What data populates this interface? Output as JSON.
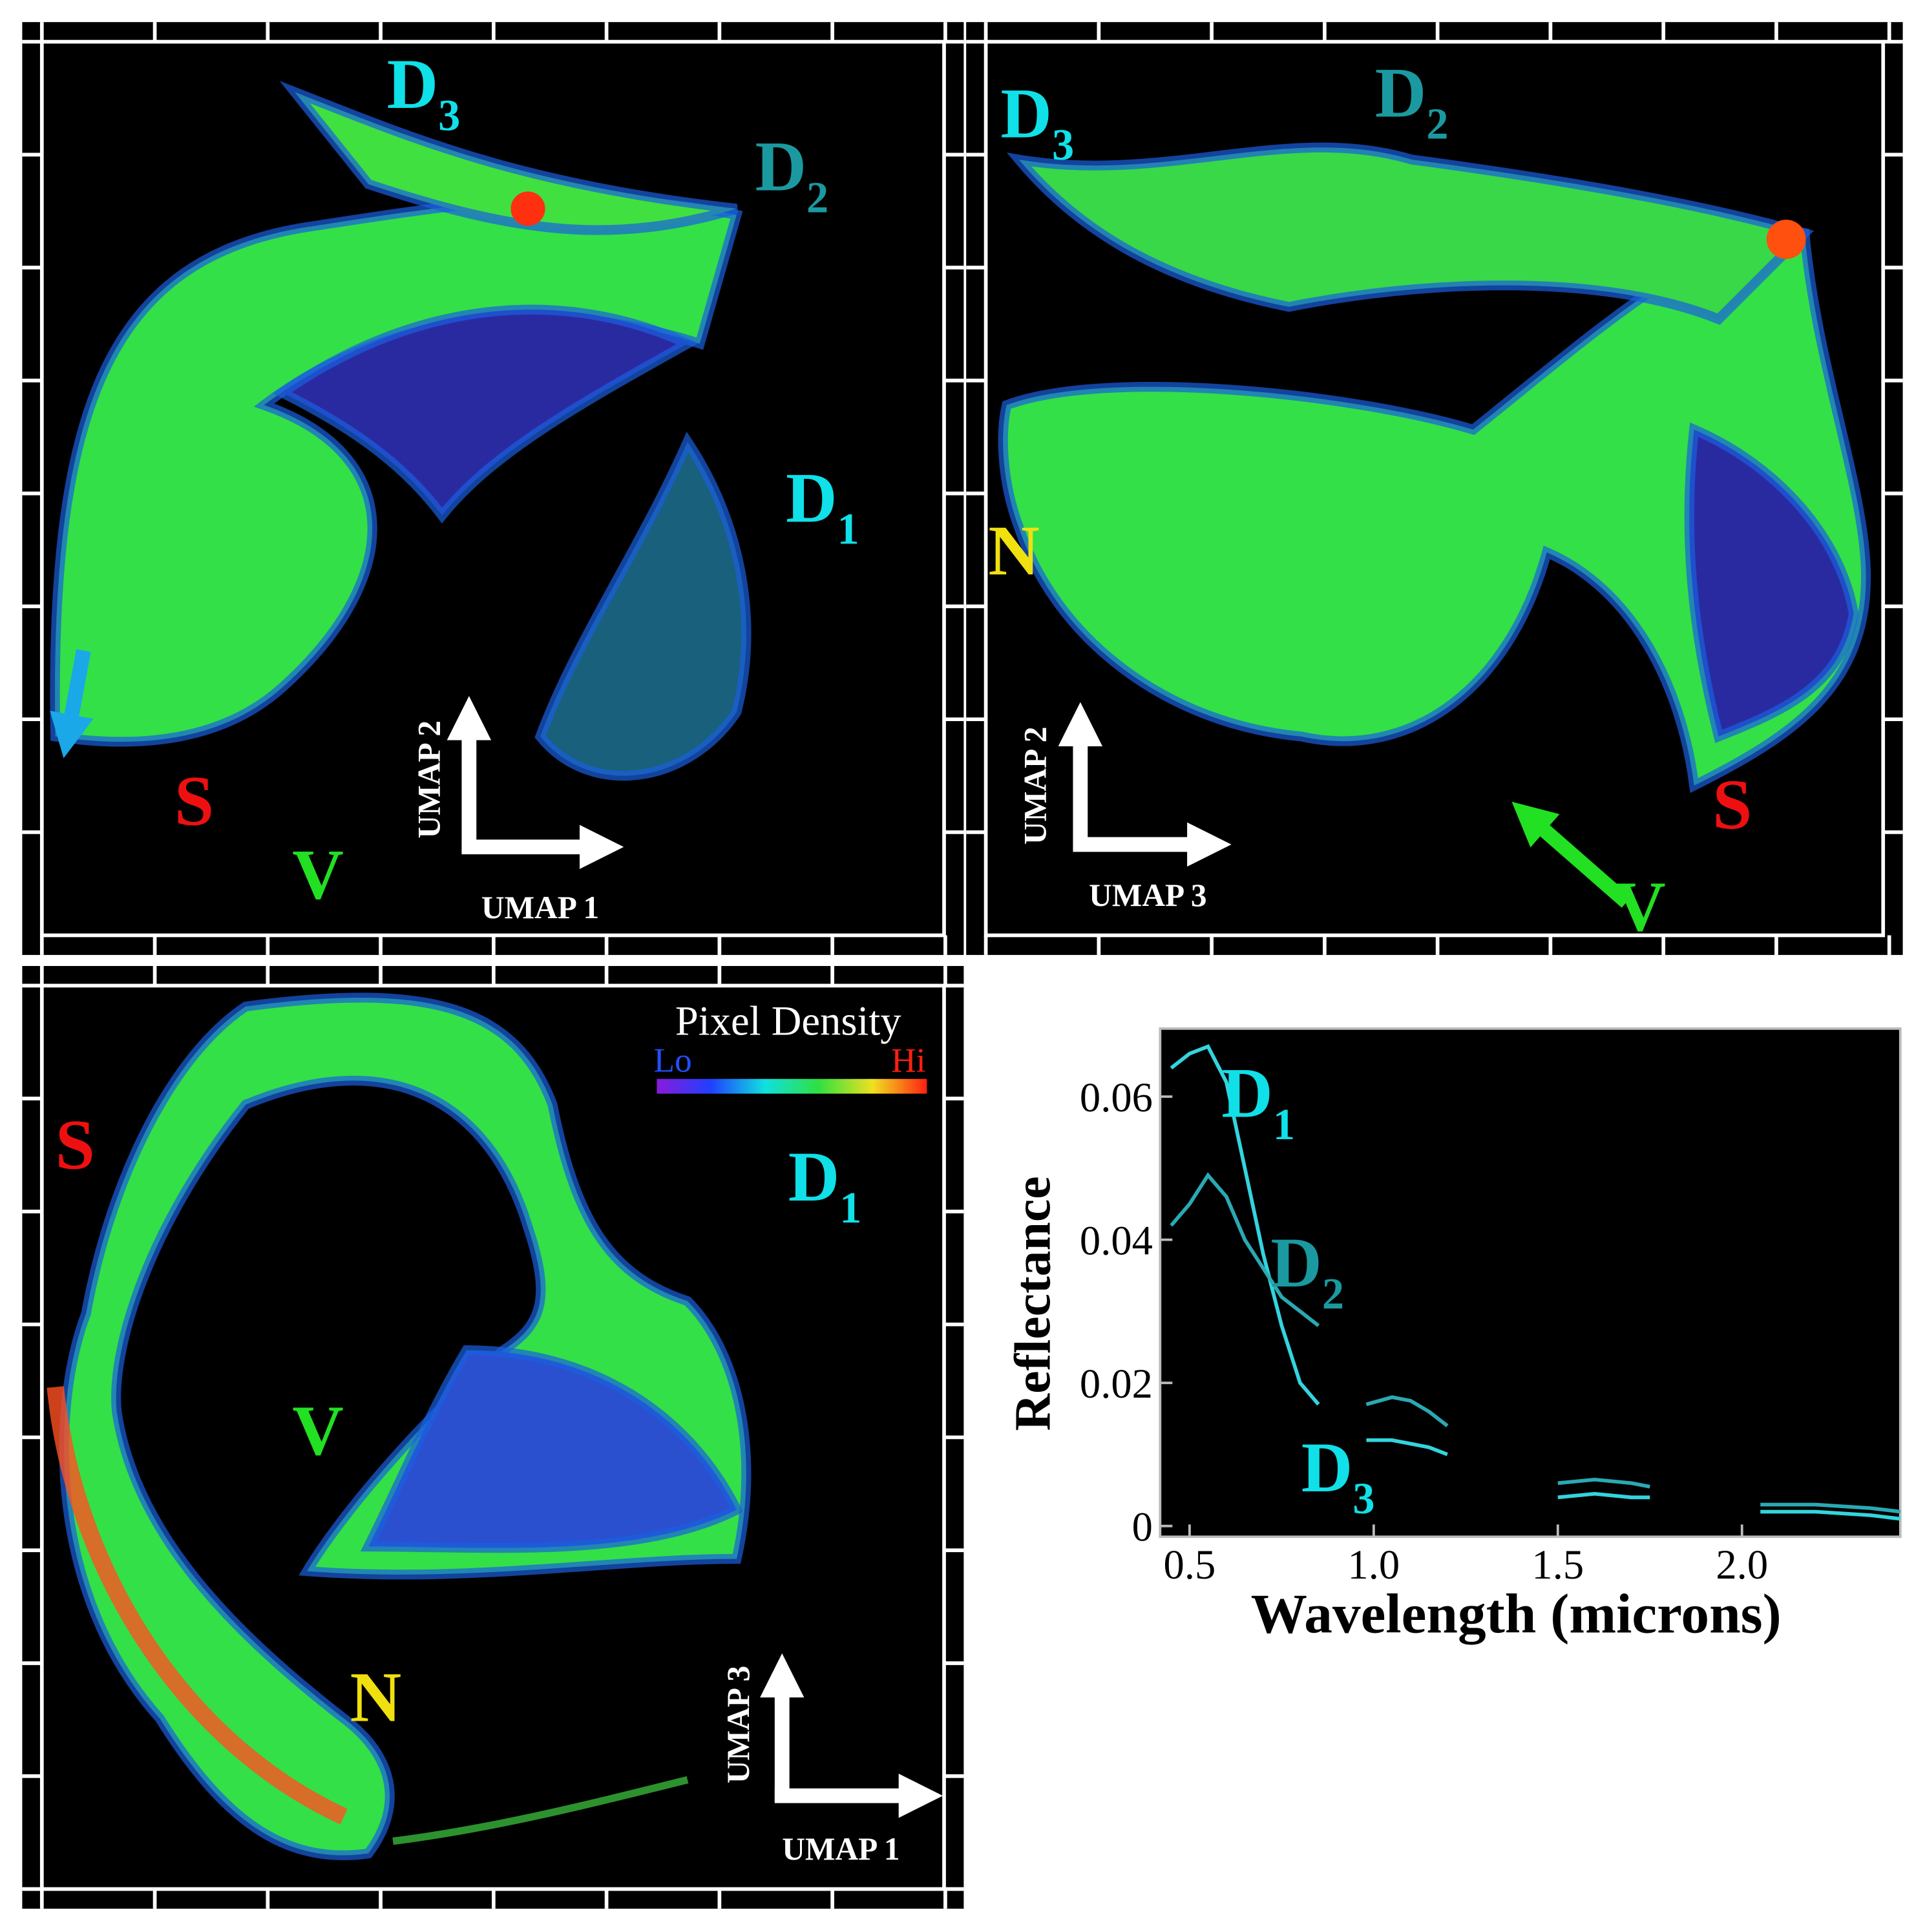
{
  "panels": [
    {
      "labels": [
        {
          "text": "D",
          "sub": "3"
        },
        {
          "text": "D",
          "sub": "2"
        },
        {
          "text": "D",
          "sub": "1"
        },
        {
          "text": "S"
        },
        {
          "text": "V"
        }
      ],
      "axis_y": "UMAP 2",
      "axis_x": "UMAP 1"
    },
    {
      "labels": [
        {
          "text": "D",
          "sub": "3"
        },
        {
          "text": "D",
          "sub": "2"
        },
        {
          "text": "N"
        },
        {
          "text": "S"
        },
        {
          "text": "V"
        }
      ],
      "axis_y": "UMAP 2",
      "axis_x": "UMAP 3"
    },
    {
      "labels": [
        {
          "text": "S"
        },
        {
          "text": "D",
          "sub": "1"
        },
        {
          "text": "V"
        },
        {
          "text": "N"
        }
      ],
      "axis_y": "UMAP 3",
      "axis_x": "UMAP 1"
    }
  ],
  "colorbar": {
    "title": "Pixel Density",
    "low": "Lo",
    "high": "Hi"
  },
  "chart_data": {
    "type": "line",
    "x_label": "Wavelength (microns)",
    "y_label": "Reflectance",
    "x": [
      0.45,
      0.5,
      0.55,
      0.6,
      0.65,
      0.7,
      0.75,
      0.8,
      0.85,
      0.9,
      0.98,
      1.05,
      1.1,
      1.15,
      1.2,
      1.3,
      1.5,
      1.6,
      1.7,
      1.75,
      1.9,
      2.05,
      2.2,
      2.35,
      2.43
    ],
    "series": [
      {
        "color": "#33d4de",
        "values": [
          0.064,
          0.066,
          0.067,
          0.062,
          0.05,
          0.038,
          0.028,
          0.02,
          0.017,
          null,
          0.012,
          0.012,
          0.0115,
          0.011,
          0.01,
          null,
          0.004,
          0.0045,
          0.004,
          0.004,
          null,
          0.002,
          0.002,
          0.0015,
          0.001
        ]
      },
      {
        "color": "#2aa9b3",
        "values": [
          0.042,
          0.045,
          0.049,
          0.046,
          0.04,
          0.036,
          0.032,
          0.03,
          0.028,
          null,
          0.017,
          0.018,
          0.0175,
          0.016,
          0.014,
          null,
          0.006,
          0.0065,
          0.006,
          0.0055,
          null,
          0.003,
          0.003,
          0.0025,
          0.002
        ]
      }
    ],
    "annotations": [
      {
        "text": "D",
        "sub": "1"
      },
      {
        "text": "D",
        "sub": "2"
      },
      {
        "text": "D",
        "sub": "3"
      }
    ],
    "xlim": [
      0.42,
      2.43
    ],
    "ylim": [
      -0.0015,
      0.0695
    ],
    "xticks": [
      0.5,
      {
        "value": 1,
        "label": "1.0"
      },
      1.5,
      {
        "value": 2,
        "label": "2.0"
      }
    ],
    "yticks": [
      0,
      0.02,
      0.04,
      0.06
    ]
  }
}
